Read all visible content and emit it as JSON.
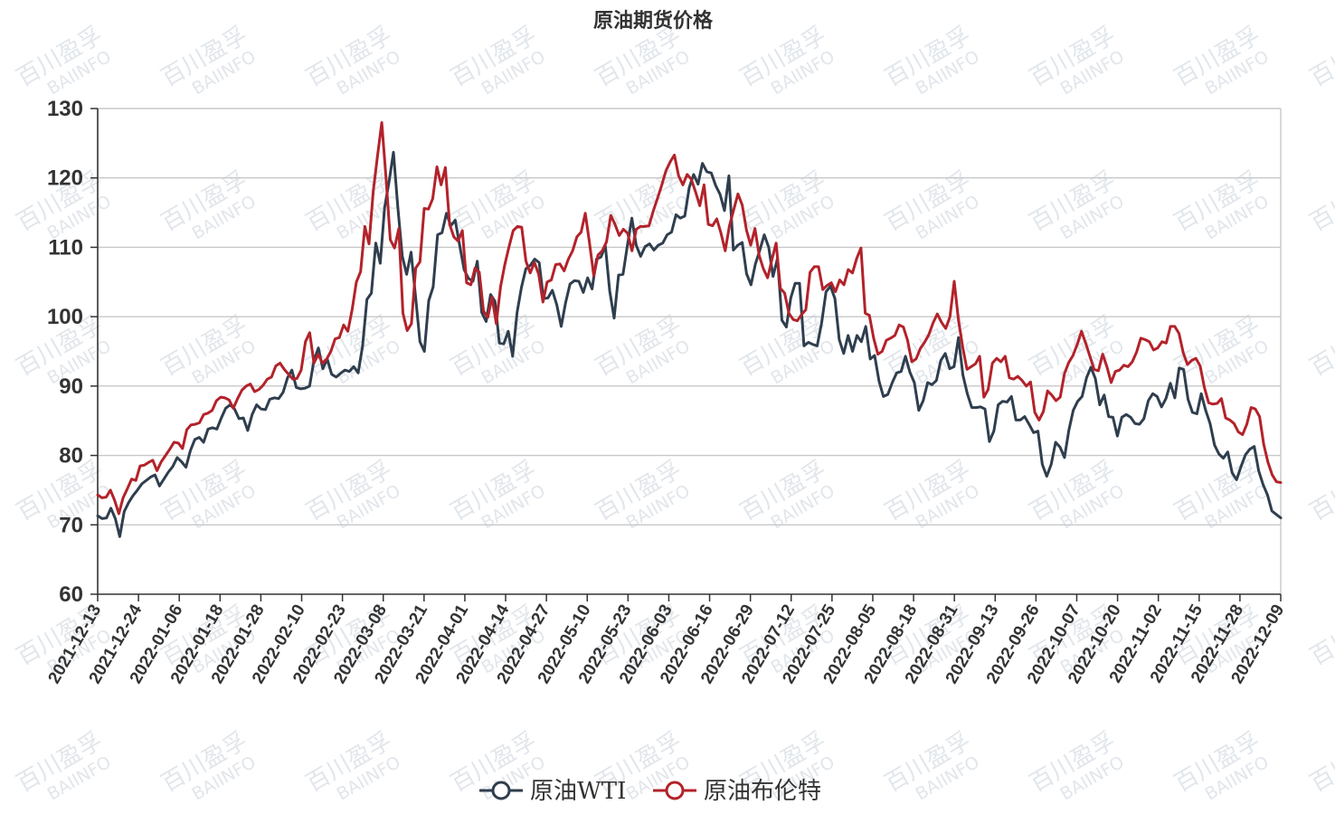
{
  "chart_data": {
    "type": "line",
    "title": "原油期货价格",
    "xlabel": "",
    "ylabel": "",
    "ylim": [
      60,
      130
    ],
    "yticks": [
      60,
      70,
      80,
      90,
      100,
      110,
      120,
      130
    ],
    "grid": true,
    "legend_position": "bottom",
    "x_tick_labels": [
      "2021-12-13",
      "2021-12-24",
      "2022-01-06",
      "2022-01-18",
      "2022-01-28",
      "2022-02-10",
      "2022-02-23",
      "2022-03-08",
      "2022-03-21",
      "2022-04-01",
      "2022-04-14",
      "2022-04-27",
      "2022-05-10",
      "2022-05-23",
      "2022-06-03",
      "2022-06-16",
      "2022-06-29",
      "2022-07-12",
      "2022-07-25",
      "2022-08-05",
      "2022-08-18",
      "2022-08-31",
      "2022-09-13",
      "2022-09-26",
      "2022-10-07",
      "2022-10-20",
      "2022-11-02",
      "2022-11-15",
      "2022-11-28",
      "2022-12-09"
    ],
    "series": [
      {
        "name": "原油WTI",
        "color": "#2f3e4e",
        "values": [
          71.3,
          70.9,
          71.0,
          72.4,
          70.9,
          68.3,
          71.9,
          73.2,
          74.2,
          75.0,
          75.9,
          76.4,
          76.9,
          77.2,
          75.6,
          76.6,
          77.6,
          78.4,
          79.7,
          79.1,
          78.3,
          80.7,
          82.3,
          82.6,
          81.9,
          83.8,
          84.0,
          83.8,
          85.4,
          86.8,
          87.3,
          86.7,
          85.3,
          85.4,
          83.6,
          85.9,
          87.3,
          86.7,
          86.6,
          88.1,
          88.3,
          88.2,
          89.1,
          91.2,
          92.3,
          89.8,
          89.6,
          89.7,
          90.0,
          93.7,
          95.5,
          92.5,
          93.9,
          91.7,
          91.3,
          91.8,
          92.3,
          92.1,
          92.8,
          91.9,
          95.7,
          102.5,
          103.4,
          110.6,
          107.7,
          115.7,
          119.4,
          123.7,
          115.7,
          108.7,
          106.1,
          109.3,
          102.98,
          96.4,
          95.0,
          102.3,
          104.3,
          111.8,
          112.1,
          114.9,
          113.1,
          113.9,
          110.3,
          106.8,
          105.5,
          105.1,
          108.0,
          100.6,
          99.3,
          103.2,
          102.2,
          96.2,
          96.1,
          97.9,
          94.3,
          100.6,
          104.2,
          106.9,
          107.4,
          108.3,
          107.8,
          102.6,
          102.7,
          103.8,
          101.7,
          98.6,
          102.0,
          104.7,
          105.2,
          105.1,
          103.5,
          105.6,
          104.0,
          108.3,
          108.6,
          110.2,
          103.7,
          99.8,
          106.0,
          106.1,
          110.3,
          114.2,
          110.3,
          108.7,
          110.1,
          110.5,
          109.6,
          110.3,
          110.6,
          111.8,
          112.2,
          114.7,
          114.2,
          114.5,
          118.6,
          120.5,
          119.1,
          122.1,
          120.9,
          120.7,
          118.9,
          117.6,
          115.3,
          120.3,
          109.6,
          110.3,
          110.7,
          106.2,
          104.6,
          107.6,
          109.6,
          111.8,
          110.0,
          105.8,
          108.4,
          99.5,
          98.5,
          102.7,
          104.8,
          104.8,
          95.8,
          96.3,
          96.0,
          95.8,
          99.1,
          103.6,
          104.4,
          102.6,
          96.7,
          94.7,
          97.3,
          95.0,
          97.3,
          96.4,
          98.6,
          93.9,
          94.4,
          90.7,
          88.5,
          88.8,
          90.5,
          91.9,
          92.1,
          94.3,
          92.0,
          90.5,
          86.5,
          87.9,
          90.5,
          90.2,
          90.8,
          93.7,
          94.7,
          92.5,
          92.8,
          97.0,
          91.6,
          88.9,
          86.9,
          86.9,
          87.0,
          86.7,
          82.0,
          83.5,
          87.3,
          87.8,
          87.7,
          88.5,
          85.1,
          85.1,
          85.6,
          84.5,
          83.3,
          83.5,
          78.7,
          77.0,
          78.7,
          81.9,
          81.2,
          79.7,
          83.6,
          86.5,
          87.8,
          88.5,
          91.2,
          92.7,
          91.1,
          87.3,
          88.7,
          85.6,
          85.5,
          82.8,
          85.5,
          85.9,
          85.5,
          84.6,
          84.5,
          85.3,
          87.9,
          88.9,
          88.5,
          87.0,
          88.2,
          90.4,
          88.3,
          92.6,
          92.4,
          88.1,
          86.2,
          86.0,
          88.9,
          86.5,
          84.6,
          81.5,
          80.2,
          79.6,
          80.5,
          77.5,
          76.5,
          78.4,
          80.1,
          80.9,
          81.3,
          77.8,
          75.8,
          74.3,
          72.0,
          71.5,
          71.0
        ]
      },
      {
        "name": "原油布伦特",
        "color": "#b3222a",
        "values": [
          74.3,
          73.9,
          74.0,
          75.0,
          73.5,
          71.6,
          73.9,
          75.2,
          76.6,
          76.4,
          78.5,
          78.6,
          79.0,
          79.3,
          77.8,
          79.1,
          80.0,
          80.9,
          81.9,
          81.8,
          81.0,
          83.7,
          84.4,
          84.5,
          84.7,
          85.9,
          86.1,
          86.5,
          87.9,
          88.4,
          88.3,
          88.0,
          86.8,
          88.2,
          89.4,
          90.0,
          90.3,
          89.2,
          89.5,
          90.1,
          91.0,
          91.3,
          92.9,
          93.3,
          92.4,
          91.7,
          91.0,
          91.1,
          92.3,
          96.4,
          97.7,
          93.3,
          94.6,
          93.3,
          93.9,
          95.0,
          96.8,
          97.0,
          98.8,
          97.9,
          101.0,
          105.0,
          106.5,
          113.0,
          110.5,
          118.1,
          123.2,
          127.98,
          120.0,
          111.1,
          109.9,
          112.7,
          100.5,
          98.0,
          99.0,
          107.0,
          107.9,
          115.6,
          115.5,
          117.0,
          121.6,
          119.0,
          121.5,
          113.3,
          111.5,
          110.9,
          112.4,
          104.9,
          104.6,
          107.0,
          106.4,
          100.8,
          99.9,
          102.8,
          99.0,
          104.3,
          107.5,
          110.1,
          112.4,
          113.0,
          112.9,
          108.0,
          106.3,
          107.8,
          106.1,
          102.1,
          105.0,
          105.3,
          107.5,
          107.6,
          106.6,
          108.3,
          109.5,
          111.5,
          112.2,
          114.9,
          110.6,
          105.9,
          108.9,
          109.5,
          110.8,
          114.6,
          113.3,
          111.7,
          112.6,
          112.0,
          109.5,
          112.6,
          113.0,
          113.0,
          113.1,
          115.2,
          117.0,
          118.9,
          121.0,
          122.3,
          123.3,
          120.3,
          119.0,
          120.5,
          119.8,
          118.0,
          116.0,
          119.0,
          113.3,
          113.1,
          114.1,
          112.0,
          109.5,
          113.1,
          115.4,
          117.7,
          116.1,
          112.5,
          110.3,
          112.7,
          108.8,
          106.9,
          105.6,
          108.2,
          110.6,
          104.1,
          103.4,
          100.5,
          99.6,
          99.4,
          100.3,
          101.0,
          106.4,
          107.2,
          107.2,
          103.9,
          104.5,
          104.9,
          103.6,
          105.3,
          104.6,
          106.8,
          106.3,
          108.4,
          109.9,
          100.5,
          100.2,
          96.9,
          94.6,
          95.0,
          96.6,
          96.9,
          97.3,
          98.8,
          98.5,
          96.6,
          93.5,
          93.9,
          95.4,
          96.3,
          97.4,
          99.1,
          100.4,
          99.2,
          98.3,
          100.0,
          105.1,
          99.5,
          95.6,
          92.4,
          92.8,
          93.2,
          94.3,
          88.4,
          89.5,
          93.3,
          94.0,
          93.5,
          94.3,
          91.2,
          91.0,
          91.4,
          90.8,
          90.0,
          90.6,
          86.2,
          85.1,
          86.3,
          89.3,
          88.7,
          87.9,
          88.4,
          91.8,
          93.4,
          94.4,
          96.0,
          97.9,
          96.2,
          94.3,
          92.4,
          92.2,
          94.6,
          92.8,
          90.5,
          92.1,
          92.3,
          93.0,
          92.8,
          93.5,
          94.9,
          96.9,
          96.7,
          96.4,
          95.2,
          95.5,
          96.4,
          96.2,
          98.6,
          98.6,
          97.6,
          94.8,
          93.1,
          93.7,
          94.0,
          92.9,
          89.8,
          87.6,
          87.4,
          87.5,
          88.2,
          85.4,
          85.1,
          84.6,
          83.4,
          83.0,
          84.5,
          86.9,
          86.7,
          85.6,
          81.6,
          79.0,
          77.2,
          76.2,
          76.1
        ]
      }
    ]
  },
  "watermark": {
    "line1": "百川盈孚",
    "line2": "BAIINFO"
  }
}
